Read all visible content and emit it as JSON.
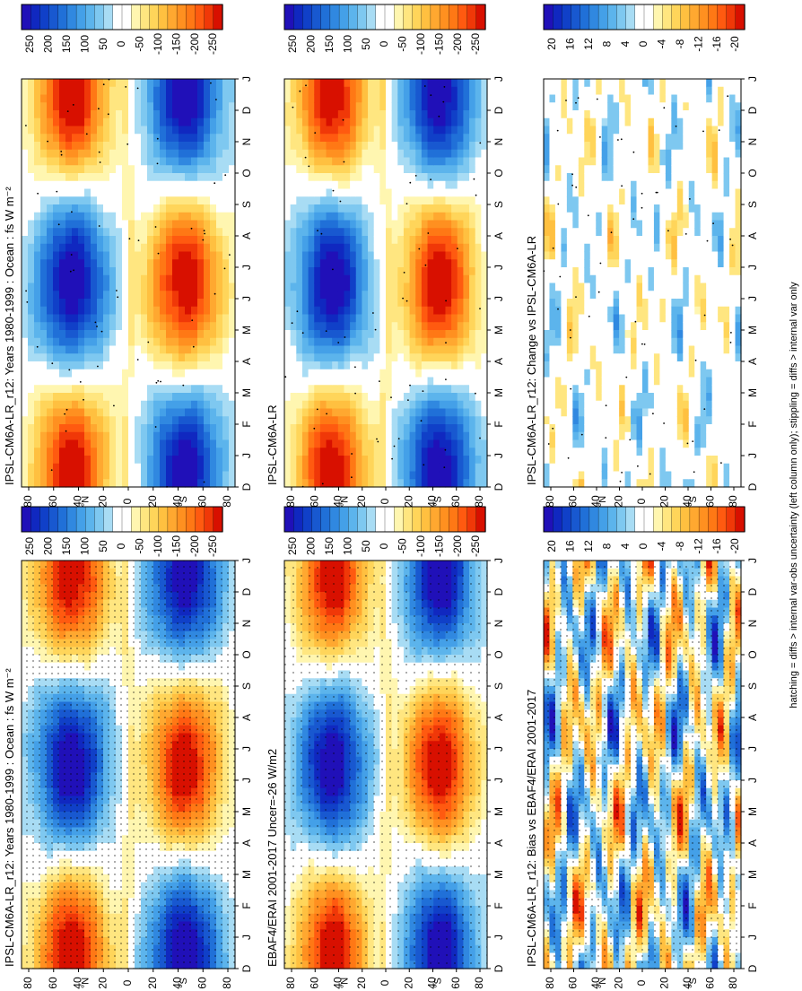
{
  "figure": {
    "footnote": "hatching = diffs > internal var-obs uncertainty (left column only); stippling = diffs > internal var only"
  },
  "chart_data": [
    {
      "type": "heatmap",
      "title": "IPSL-CM6A-LR_r12: Years 1980-1999 : Ocean : fs W m⁻²",
      "months": [
        "D",
        "J",
        "F",
        "M",
        "A",
        "M",
        "J",
        "J",
        "A",
        "S",
        "O",
        "N",
        "D",
        "J"
      ],
      "lat_ticks": [
        "80",
        "60",
        "40",
        "20",
        "0",
        "20",
        "40",
        "60",
        "80"
      ],
      "lat_hemi_labels": [
        "°N",
        "°S"
      ],
      "colorbar": [
        "250",
        "200",
        "150",
        "100",
        "50",
        "0",
        "-50",
        "-100",
        "-150",
        "-200",
        "-250"
      ],
      "colorscale": "flux",
      "amplitude": 250,
      "stipple": "dense"
    },
    {
      "type": "heatmap",
      "title": "EBAF4/ERAI 2001-2017 Uncer=-26 W/m2",
      "months": [
        "D",
        "J",
        "F",
        "M",
        "A",
        "M",
        "J",
        "J",
        "A",
        "S",
        "O",
        "N",
        "D",
        "J"
      ],
      "lat_ticks": [
        "80",
        "60",
        "40",
        "20",
        "0",
        "20",
        "40",
        "60",
        "80"
      ],
      "lat_hemi_labels": [
        "°N",
        "°S"
      ],
      "colorbar": [
        "250",
        "200",
        "150",
        "100",
        "50",
        "0",
        "-50",
        "-100",
        "-150",
        "-200",
        "-250"
      ],
      "colorscale": "flux",
      "amplitude": 250,
      "stipple": "medium"
    },
    {
      "type": "heatmap",
      "title": "IPSL-CM6A-LR_r12: Bias vs EBAF4/ERAI 2001-2017",
      "months": [
        "D",
        "J",
        "F",
        "M",
        "A",
        "M",
        "J",
        "J",
        "A",
        "S",
        "O",
        "N",
        "D",
        "J"
      ],
      "lat_ticks": [
        "80",
        "60",
        "40",
        "20",
        "0",
        "20",
        "40",
        "60",
        "80"
      ],
      "lat_hemi_labels": [
        "°N",
        "°S"
      ],
      "colorbar": [
        "20",
        "16",
        "12",
        "8",
        "4",
        "0",
        "-4",
        "-8",
        "-12",
        "-16",
        "-20"
      ],
      "colorscale": "diff",
      "amplitude": 20,
      "stipple": "dense"
    },
    {
      "type": "heatmap",
      "title": "IPSL-CM6A-LR_r12: Years 1980-1999 : Ocean : fs W m⁻²",
      "months": [
        "D",
        "J",
        "F",
        "M",
        "A",
        "M",
        "J",
        "J",
        "A",
        "S",
        "O",
        "N",
        "D",
        "J"
      ],
      "lat_ticks": [
        "80",
        "60",
        "40",
        "20",
        "0",
        "20",
        "40",
        "60",
        "80"
      ],
      "lat_hemi_labels": [
        "°N",
        "°S"
      ],
      "colorbar": [
        "250",
        "200",
        "150",
        "100",
        "50",
        "0",
        "-50",
        "-100",
        "-150",
        "-200",
        "-250"
      ],
      "colorscale": "flux",
      "amplitude": 250,
      "stipple": "sparse"
    },
    {
      "type": "heatmap",
      "title": "IPSL-CM6A-LR",
      "months": [
        "D",
        "J",
        "F",
        "M",
        "A",
        "M",
        "J",
        "J",
        "A",
        "S",
        "O",
        "N",
        "D",
        "J"
      ],
      "lat_ticks": [
        "80",
        "60",
        "40",
        "20",
        "0",
        "20",
        "40",
        "60",
        "80"
      ],
      "lat_hemi_labels": [
        "°N",
        "°S"
      ],
      "colorbar": [
        "250",
        "200",
        "150",
        "100",
        "50",
        "0",
        "-50",
        "-100",
        "-150",
        "-200",
        "-250"
      ],
      "colorscale": "flux",
      "amplitude": 250,
      "stipple": "sparse"
    },
    {
      "type": "heatmap",
      "title": "IPSL-CM6A-LR_r12: Change vs IPSL-CM6A-LR",
      "months": [
        "D",
        "J",
        "F",
        "M",
        "A",
        "M",
        "J",
        "J",
        "A",
        "S",
        "O",
        "N",
        "D",
        "J"
      ],
      "lat_ticks": [
        "80",
        "60",
        "40",
        "20",
        "0",
        "20",
        "40",
        "60",
        "80"
      ],
      "lat_hemi_labels": [
        "°N",
        "°S"
      ],
      "colorbar": [
        "20",
        "16",
        "12",
        "8",
        "4",
        "0",
        "-4",
        "-8",
        "-12",
        "-16",
        "-20"
      ],
      "colorscale": "diff",
      "amplitude": 20,
      "stipple": "sparse",
      "sparse_field": true
    }
  ],
  "colors": {
    "warm": [
      "#ffffff",
      "#fff6b0",
      "#ffe680",
      "#ffd55a",
      "#ffc040",
      "#ffa830",
      "#ff9020",
      "#ff7815",
      "#ff5a10",
      "#f03808",
      "#d81000"
    ],
    "cool": [
      "#ffffff",
      "#a8dcf4",
      "#7ec8f0",
      "#5cb4ec",
      "#44a0e8",
      "#3088e0",
      "#2070d8",
      "#1858d0",
      "#1040c8",
      "#1028c0",
      "#2010b8"
    ]
  }
}
